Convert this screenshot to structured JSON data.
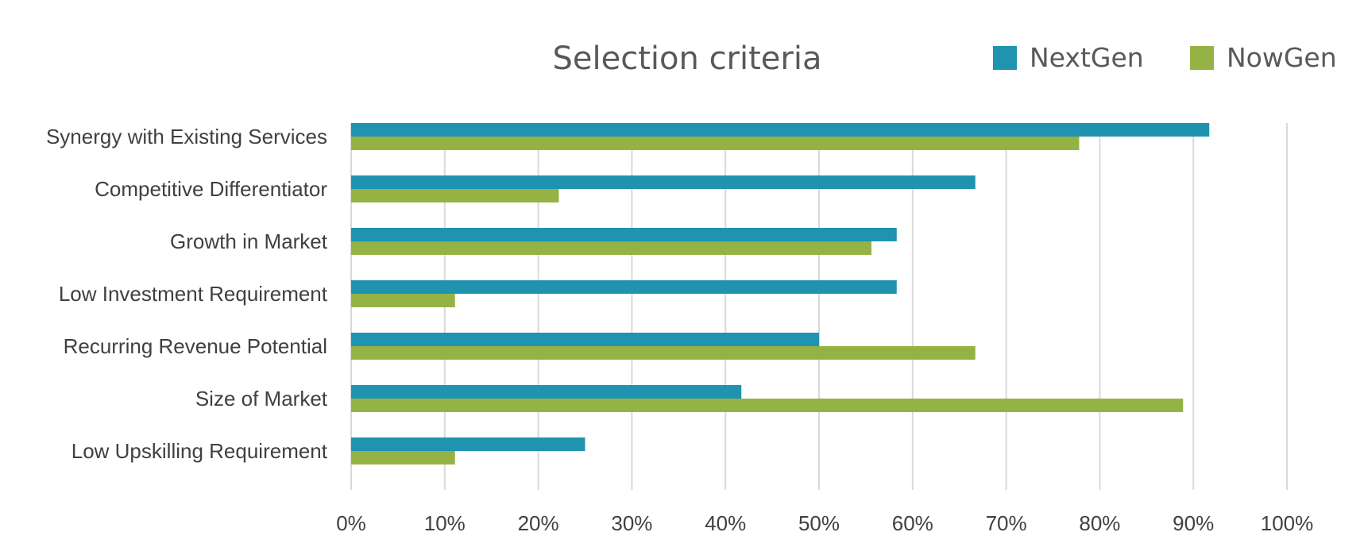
{
  "chart_data": {
    "type": "bar",
    "orientation": "horizontal",
    "title": "Selection criteria",
    "categories": [
      "Synergy with Existing Services",
      "Competitive Differentiator",
      "Growth in Market",
      "Low Investment Requirement",
      "Recurring Revenue Potential",
      "Size of Market",
      "Low Upskilling Requirement"
    ],
    "series": [
      {
        "name": "NextGen",
        "color": "#1f93b0",
        "values": [
          0.917,
          0.667,
          0.583,
          0.583,
          0.5,
          0.417,
          0.25
        ]
      },
      {
        "name": "NowGen",
        "color": "#94b344",
        "values": [
          0.778,
          0.222,
          0.556,
          0.111,
          0.667,
          0.889,
          0.111
        ]
      }
    ],
    "xlim": [
      0,
      1
    ],
    "x_ticks": [
      "0%",
      "10%",
      "20%",
      "30%",
      "40%",
      "50%",
      "60%",
      "70%",
      "80%",
      "90%",
      "100%"
    ],
    "xlabel": "",
    "ylabel": "",
    "grid": "vertical",
    "legend_position": "top-right"
  }
}
